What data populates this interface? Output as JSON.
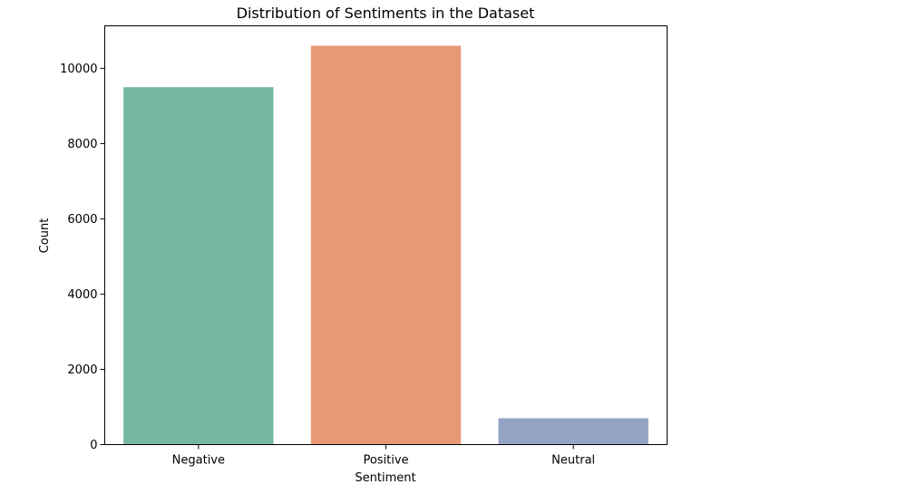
{
  "chart_data": {
    "type": "bar",
    "title": "Distribution of Sentiments in the Dataset",
    "xlabel": "Sentiment",
    "ylabel": "Count",
    "categories": [
      "Negative",
      "Positive",
      "Neutral"
    ],
    "values": [
      9500,
      10600,
      700
    ],
    "colors": [
      "#76b7a2",
      "#e99875",
      "#95a4c5"
    ],
    "ylim": [
      0,
      11130
    ],
    "yticks": [
      0,
      2000,
      4000,
      6000,
      8000,
      10000
    ],
    "ytick_labels": [
      "0",
      "2000",
      "4000",
      "6000",
      "8000",
      "10000"
    ],
    "grid": false,
    "legend": "none"
  }
}
